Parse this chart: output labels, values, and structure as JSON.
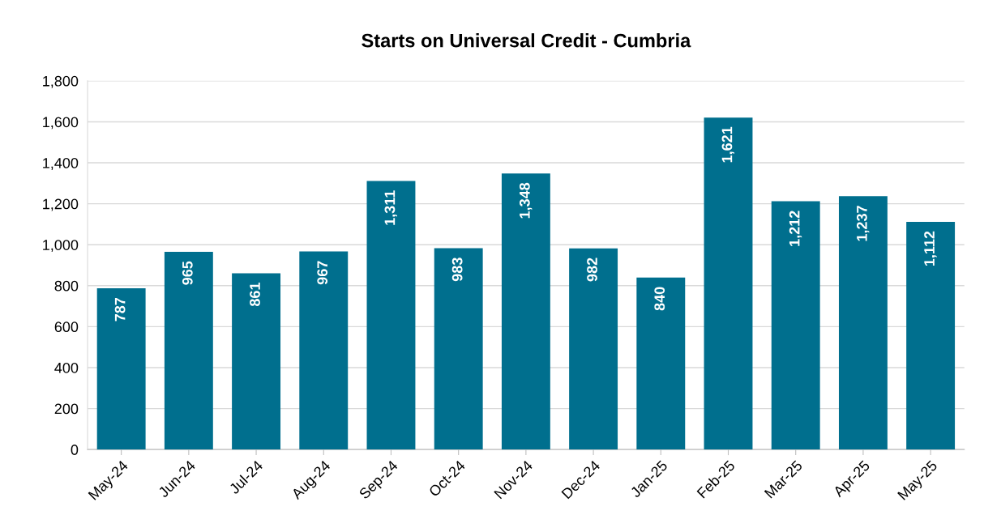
{
  "chart_data": {
    "type": "bar",
    "title": "Starts on Universal Credit - Cumbria",
    "categories": [
      "May-24",
      "Jun-24",
      "Jul-24",
      "Aug-24",
      "Sep-24",
      "Oct-24",
      "Nov-24",
      "Dec-24",
      "Jan-25",
      "Feb-25",
      "Mar-25",
      "Apr-25",
      "May-25"
    ],
    "values": [
      787,
      965,
      861,
      967,
      1311,
      983,
      1348,
      982,
      840,
      1621,
      1212,
      1237,
      1112
    ],
    "value_labels": [
      "787",
      "965",
      "861",
      "967",
      "1,311",
      "983",
      "1,348",
      "982",
      "840",
      "1,621",
      "1,212",
      "1,237",
      "1,112"
    ],
    "color": "#006f8e",
    "ylim": [
      0,
      1800
    ],
    "yticks": [
      0,
      200,
      400,
      600,
      800,
      {
        "value": 1000,
        "label": "1,000"
      },
      {
        "value": 1200,
        "label": "1,200"
      },
      {
        "value": 1400,
        "label": "1,400"
      },
      {
        "value": 1600,
        "label": "1,600"
      },
      {
        "value": 1800,
        "label": "1,800"
      }
    ],
    "grid": "y",
    "legend": false
  }
}
